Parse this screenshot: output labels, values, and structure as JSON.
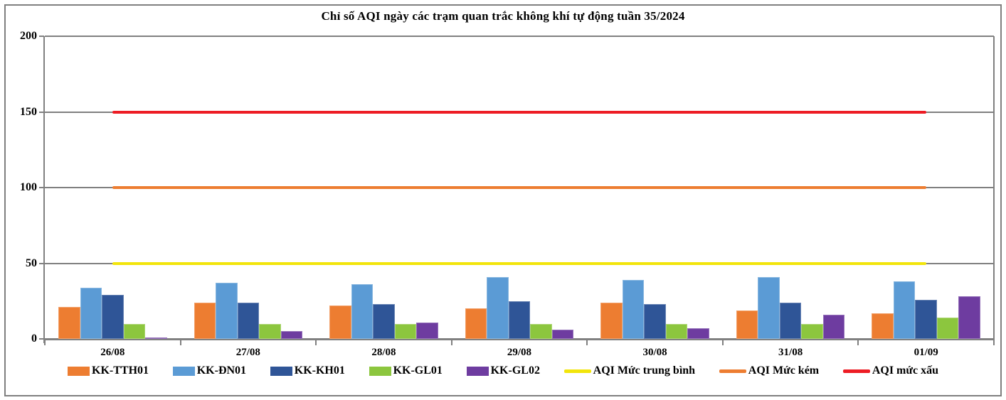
{
  "title": "Chỉ số AQI ngày các trạm quan trắc không khí tự động tuần 35/2024",
  "chart_data": {
    "type": "bar",
    "title": "Chỉ số AQI ngày các trạm quan trắc không khí tự động tuần 35/2024",
    "categories": [
      "26/08",
      "27/08",
      "28/08",
      "29/08",
      "30/08",
      "31/08",
      "01/09"
    ],
    "series": [
      {
        "name": "KK-TTH01",
        "color": "#ED7D31",
        "values": [
          21,
          24,
          22,
          20,
          24,
          19,
          17
        ]
      },
      {
        "name": "KK-ĐN01",
        "color": "#5B9BD5",
        "values": [
          34,
          37,
          36,
          41,
          39,
          41,
          38
        ]
      },
      {
        "name": "KK-KH01",
        "color": "#2F5597",
        "values": [
          29,
          24,
          23,
          25,
          23,
          24,
          26
        ]
      },
      {
        "name": "KK-GL01",
        "color": "#8CC63E",
        "values": [
          10,
          10,
          10,
          10,
          10,
          10,
          14
        ]
      },
      {
        "name": "KK-GL02",
        "color": "#6E3CA0",
        "values": [
          1,
          5,
          11,
          6,
          7,
          16,
          28
        ]
      }
    ],
    "ref_lines": [
      {
        "name": "AQI Mức trung bình",
        "color": "#F2E50B",
        "value": 50
      },
      {
        "name": "AQI Mức kém",
        "color": "#ED7D31",
        "value": 100
      },
      {
        "name": "AQI mức xấu",
        "color": "#ED1C24",
        "value": 150
      }
    ],
    "xlabel": "",
    "ylabel": "",
    "ylim": [
      0,
      200
    ],
    "yticks": [
      0,
      50,
      100,
      150,
      200
    ],
    "grid": true,
    "grid_color": "#808080",
    "legend_position": "bottom"
  }
}
